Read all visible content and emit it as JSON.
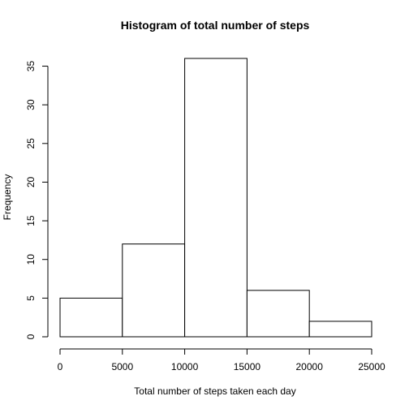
{
  "chart_data": {
    "type": "bar",
    "title": "Histogram of total number of steps",
    "xlabel": "Total number of steps taken each day",
    "ylabel": "Frequency",
    "bins": [
      {
        "from": 0,
        "to": 5000,
        "count": 5
      },
      {
        "from": 5000,
        "to": 10000,
        "count": 12
      },
      {
        "from": 10000,
        "to": 15000,
        "count": 36
      },
      {
        "from": 15000,
        "to": 20000,
        "count": 6
      },
      {
        "from": 20000,
        "to": 25000,
        "count": 2
      }
    ],
    "xlim": [
      0,
      25000
    ],
    "ylim": [
      0,
      36
    ],
    "x_ticks": [
      "0",
      "5000",
      "10000",
      "15000",
      "20000",
      "25000"
    ],
    "y_ticks": [
      "0",
      "5",
      "10",
      "15",
      "20",
      "25",
      "30",
      "35"
    ],
    "grid": false,
    "bar_fill": "#ffffff",
    "bar_stroke": "#000000"
  }
}
